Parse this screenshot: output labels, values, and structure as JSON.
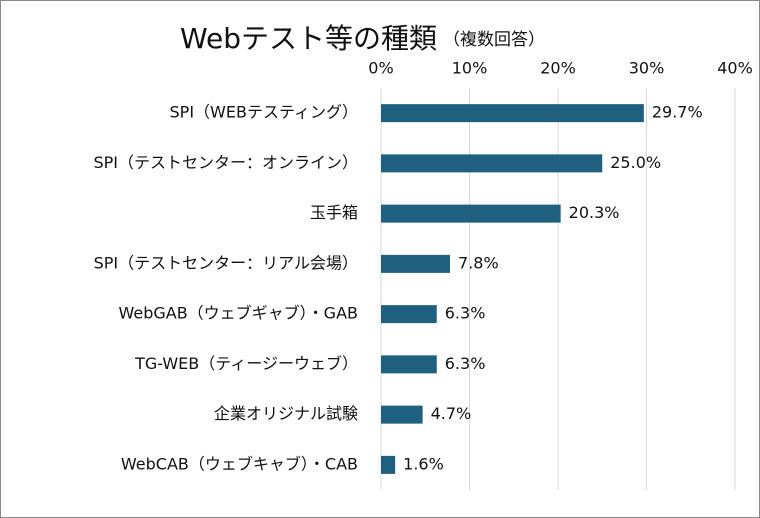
{
  "chart_data": {
    "type": "bar",
    "orientation": "horizontal",
    "title": "Webテスト等の種類",
    "subtitle": "（複数回答）",
    "categories": [
      "SPI（WEBテスティング）",
      "SPI（テストセンター：オンライン）",
      "玉手箱",
      "SPI（テストセンター：リアル会場）",
      "WebGAB（ウェブギャブ）・GAB",
      "TG-WEB（ティージーウェブ）",
      "企業オリジナル試験",
      "WebCAB（ウェブキャブ）・CAB"
    ],
    "values": [
      29.7,
      25.0,
      20.3,
      7.8,
      6.3,
      6.3,
      4.7,
      1.6
    ],
    "value_labels": [
      "29.7%",
      "25.0%",
      "20.3%",
      "7.8%",
      "6.3%",
      "6.3%",
      "4.7%",
      "1.6%"
    ],
    "color": "#1f5f80",
    "xlim": [
      0,
      40
    ],
    "xticks": [
      {
        "value": 0,
        "label": "0%"
      },
      {
        "value": 10,
        "label": "10%"
      },
      {
        "value": 20,
        "label": "20%"
      },
      {
        "value": 30,
        "label": "30%"
      },
      {
        "value": 40,
        "label": "40%"
      }
    ],
    "grid": true
  }
}
